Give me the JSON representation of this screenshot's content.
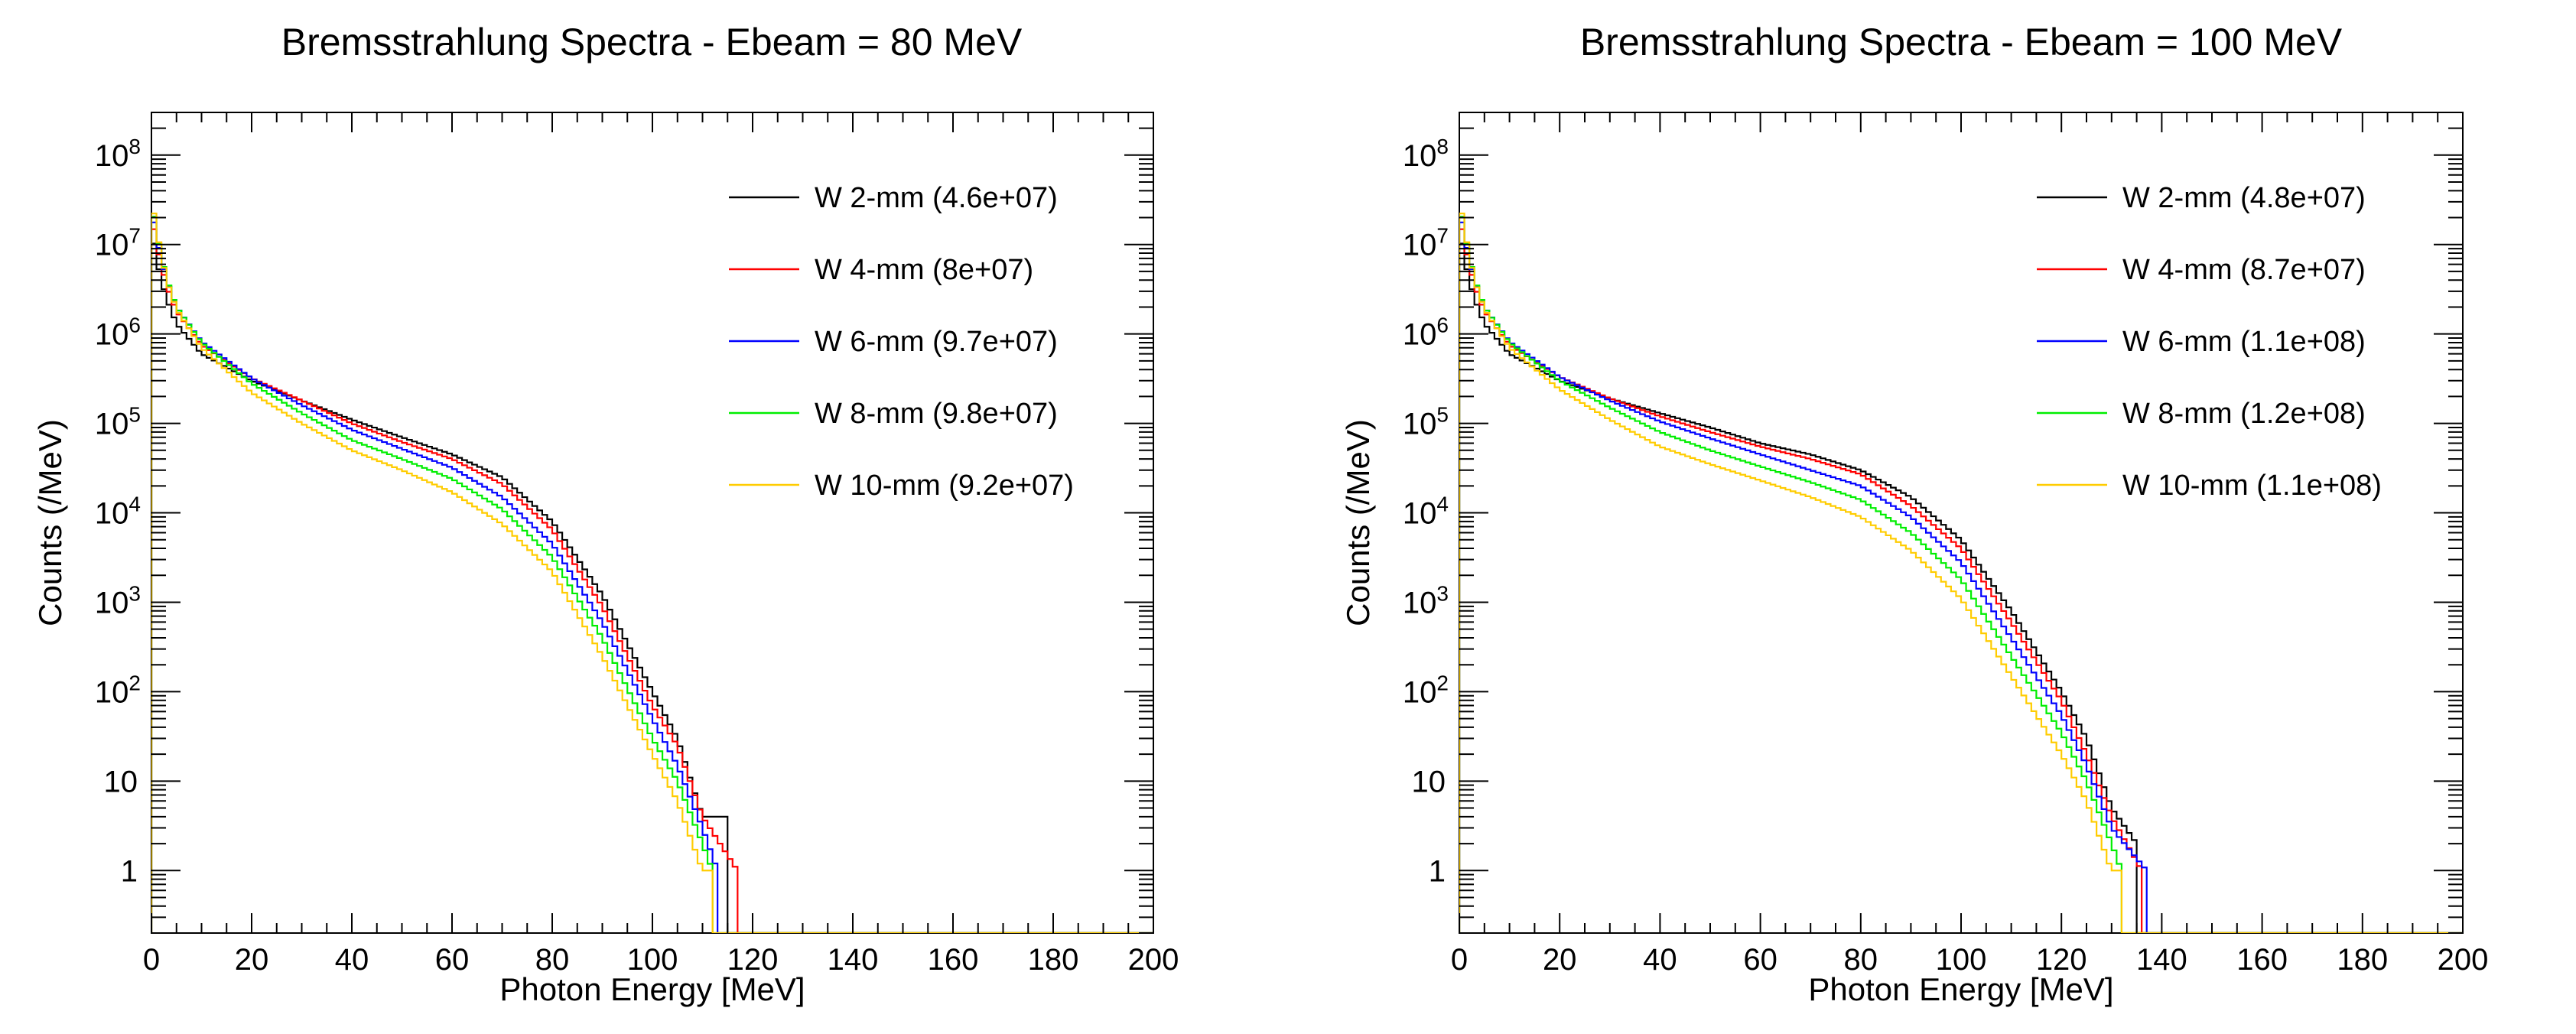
{
  "chart_data": [
    {
      "type": "line",
      "title": "Bremsstrahlung Spectra - Ebeam = 80 MeV",
      "xlabel": "Photon Energy [MeV]",
      "ylabel": "Counts (/MeV)",
      "xlim": [
        0,
        200
      ],
      "ylim": [
        0.2,
        300000000
      ],
      "yscale": "log",
      "x_ticks": [
        0,
        20,
        40,
        60,
        80,
        100,
        120,
        140,
        160,
        180,
        200
      ],
      "y_ticks": [
        {
          "value": 1,
          "base": "1",
          "exp": ""
        },
        {
          "value": 10,
          "base": "10",
          "exp": ""
        },
        {
          "value": 100,
          "base": "10",
          "exp": "2"
        },
        {
          "value": 1000,
          "base": "10",
          "exp": "3"
        },
        {
          "value": 10000,
          "base": "10",
          "exp": "4"
        },
        {
          "value": 100000,
          "base": "10",
          "exp": "5"
        },
        {
          "value": 1000000,
          "base": "10",
          "exp": "6"
        },
        {
          "value": 10000000,
          "base": "10",
          "exp": "7"
        },
        {
          "value": 100000000,
          "base": "10",
          "exp": "8"
        }
      ],
      "legend_position": "top-right",
      "bin_width": 1,
      "series": [
        {
          "name": "W 2-mm (4.6e+07)",
          "color": "#000000",
          "x": [
            0,
            1,
            2,
            3,
            5,
            10,
            20,
            30,
            40,
            50,
            60,
            70,
            80,
            90,
            100,
            105,
            110,
            115
          ],
          "y": [
            15000000,
            7000000,
            4000000,
            2500000,
            1300000,
            600000,
            300000,
            180000,
            110000,
            70000,
            45000,
            25000,
            8000,
            1200,
            100,
            30,
            4,
            4
          ]
        },
        {
          "name": "W 4-mm (8e+07)",
          "color": "#ff0000",
          "x": [
            0,
            1,
            2,
            3,
            5,
            10,
            20,
            30,
            40,
            50,
            60,
            70,
            80,
            90,
            100,
            105,
            110,
            117
          ],
          "y": [
            22000000,
            10000000,
            6000000,
            3500000,
            1800000,
            750000,
            320000,
            180000,
            100000,
            62000,
            40000,
            21000,
            6500,
            900,
            70,
            25,
            4,
            1
          ]
        },
        {
          "name": "W 6-mm (9.7e+07)",
          "color": "#0000ff",
          "x": [
            0,
            1,
            2,
            3,
            5,
            10,
            20,
            30,
            40,
            50,
            60,
            70,
            80,
            90,
            100,
            105,
            110,
            113
          ],
          "y": [
            26000000,
            12000000,
            7000000,
            4000000,
            2000000,
            820000,
            320000,
            160000,
            85000,
            52000,
            32000,
            15000,
            4500,
            600,
            50,
            15,
            3,
            1
          ]
        },
        {
          "name": "W 8-mm (9.8e+07)",
          "color": "#00ee00",
          "x": [
            0,
            1,
            2,
            3,
            5,
            10,
            20,
            30,
            40,
            50,
            60,
            70,
            80,
            90,
            100,
            105,
            110,
            112
          ],
          "y": [
            30000000,
            14000000,
            7500000,
            4200000,
            2000000,
            800000,
            280000,
            130000,
            65000,
            40000,
            24000,
            11000,
            3200,
            400,
            30,
            10,
            2,
            1
          ]
        },
        {
          "name": "W 10-mm (9.2e+07)",
          "color": "#ffcc00",
          "x": [
            0,
            1,
            2,
            3,
            5,
            10,
            20,
            30,
            40,
            50,
            60,
            70,
            80,
            90,
            100,
            105,
            110,
            112
          ],
          "y": [
            33000000,
            15000000,
            7500000,
            4000000,
            1900000,
            700000,
            220000,
            100000,
            50000,
            30000,
            17000,
            7500,
            2200,
            250,
            20,
            6,
            1,
            1
          ]
        }
      ]
    },
    {
      "type": "line",
      "title": "Bremsstrahlung Spectra - Ebeam = 100 MeV",
      "xlabel": "Photon Energy [MeV]",
      "ylabel": "Counts (/MeV)",
      "xlim": [
        0,
        200
      ],
      "ylim": [
        0.2,
        300000000
      ],
      "yscale": "log",
      "x_ticks": [
        0,
        20,
        40,
        60,
        80,
        100,
        120,
        140,
        160,
        180,
        200
      ],
      "y_ticks": [
        {
          "value": 1,
          "base": "1",
          "exp": ""
        },
        {
          "value": 10,
          "base": "10",
          "exp": ""
        },
        {
          "value": 100,
          "base": "10",
          "exp": "2"
        },
        {
          "value": 1000,
          "base": "10",
          "exp": "3"
        },
        {
          "value": 10000,
          "base": "10",
          "exp": "4"
        },
        {
          "value": 100000,
          "base": "10",
          "exp": "5"
        },
        {
          "value": 1000000,
          "base": "10",
          "exp": "6"
        },
        {
          "value": 10000000,
          "base": "10",
          "exp": "7"
        },
        {
          "value": 100000000,
          "base": "10",
          "exp": "8"
        }
      ],
      "legend_position": "top-right",
      "bin_width": 1,
      "series": [
        {
          "name": "W 2-mm (4.8e+07)",
          "color": "#000000",
          "x": [
            0,
            1,
            2,
            3,
            5,
            10,
            20,
            30,
            40,
            50,
            60,
            70,
            80,
            90,
            100,
            110,
            120,
            125,
            130,
            135
          ],
          "y": [
            15000000,
            7000000,
            4000000,
            2500000,
            1300000,
            600000,
            300000,
            190000,
            130000,
            90000,
            60000,
            45000,
            30000,
            15000,
            5000,
            800,
            100,
            30,
            5,
            2
          ]
        },
        {
          "name": "W 4-mm (8.7e+07)",
          "color": "#ff0000",
          "x": [
            0,
            1,
            2,
            3,
            5,
            10,
            20,
            30,
            40,
            50,
            60,
            70,
            80,
            90,
            100,
            110,
            120,
            125,
            130,
            136
          ],
          "y": [
            22000000,
            10000000,
            6000000,
            3500000,
            1800000,
            750000,
            330000,
            190000,
            120000,
            80000,
            55000,
            40000,
            27000,
            12000,
            4000,
            600,
            80,
            20,
            4,
            1
          ]
        },
        {
          "name": "W 6-mm (1.1e+08)",
          "color": "#0000ff",
          "x": [
            0,
            1,
            2,
            3,
            5,
            10,
            20,
            30,
            40,
            50,
            60,
            70,
            80,
            90,
            100,
            110,
            120,
            125,
            130,
            137
          ],
          "y": [
            26000000,
            12000000,
            7000000,
            4000000,
            2000000,
            820000,
            330000,
            180000,
            105000,
            68000,
            45000,
            30000,
            20000,
            9000,
            2800,
            400,
            55,
            15,
            3,
            1
          ]
        },
        {
          "name": "W 8-mm (1.2e+08)",
          "color": "#00ee00",
          "x": [
            0,
            1,
            2,
            3,
            5,
            10,
            20,
            30,
            40,
            50,
            60,
            70,
            80,
            90,
            100,
            110,
            120,
            125,
            130,
            132
          ],
          "y": [
            30000000,
            14000000,
            7500000,
            4200000,
            2000000,
            800000,
            300000,
            150000,
            80000,
            50000,
            33000,
            22000,
            14000,
            6000,
            1800,
            250,
            35,
            10,
            2,
            1
          ]
        },
        {
          "name": "W 10-mm (1.1e+08)",
          "color": "#ffcc00",
          "x": [
            0,
            1,
            2,
            3,
            5,
            10,
            20,
            30,
            40,
            50,
            60,
            70,
            80,
            90,
            100,
            110,
            120,
            125,
            130,
            132
          ],
          "y": [
            33000000,
            15000000,
            7500000,
            4000000,
            1900000,
            700000,
            240000,
            110000,
            55000,
            35000,
            23000,
            15000,
            9000,
            3800,
            1100,
            150,
            20,
            6,
            1,
            1
          ]
        }
      ]
    }
  ]
}
